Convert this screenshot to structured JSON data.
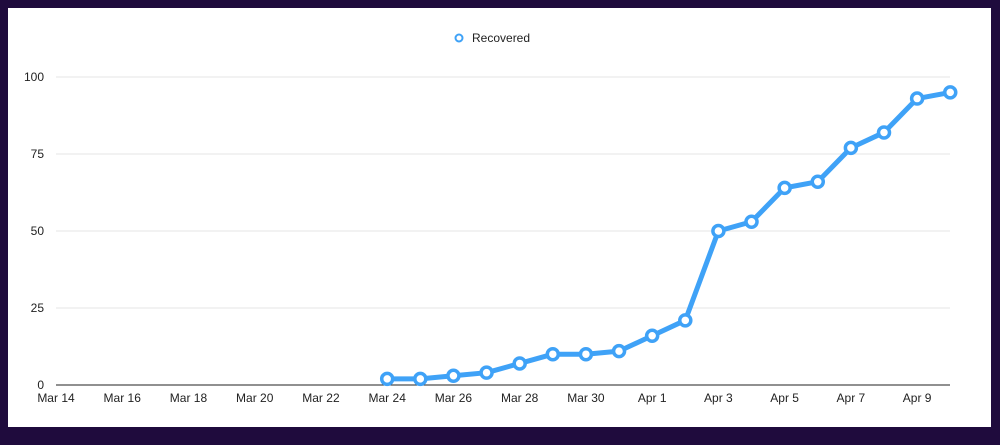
{
  "chart_data": {
    "type": "line",
    "title": "",
    "legend": {
      "entries": [
        "Recovered"
      ],
      "placement": "top-center"
    },
    "series": [
      {
        "name": "Recovered",
        "color": "#3fa2f7",
        "x": [
          "Mar 24",
          "Mar 25",
          "Mar 26",
          "Mar 27",
          "Mar 28",
          "Mar 29",
          "Mar 30",
          "Mar 31",
          "Apr 1",
          "Apr 2",
          "Apr 3",
          "Apr 4",
          "Apr 5",
          "Apr 6",
          "Apr 7",
          "Apr 8",
          "Apr 9",
          "Apr 10"
        ],
        "day_index": [
          10,
          11,
          12,
          13,
          14,
          15,
          16,
          17,
          18,
          19,
          20,
          21,
          22,
          23,
          24,
          25,
          26,
          27
        ],
        "values": [
          2,
          2,
          3,
          4,
          7,
          10,
          10,
          11,
          16,
          21,
          50,
          53,
          64,
          66,
          77,
          82,
          93,
          95
        ]
      }
    ],
    "x_ticks": [
      "Mar 14",
      "Mar 16",
      "Mar 18",
      "Mar 20",
      "Mar 22",
      "Mar 24",
      "Mar 26",
      "Mar 28",
      "Mar 30",
      "Apr 1",
      "Apr 3",
      "Apr 5",
      "Apr 7",
      "Apr 9"
    ],
    "x_tick_index": [
      0,
      2,
      4,
      6,
      8,
      10,
      12,
      14,
      16,
      18,
      20,
      22,
      24,
      26
    ],
    "y_ticks": [
      "0",
      "25",
      "50",
      "75",
      "100"
    ],
    "y_tick_values": [
      0,
      25,
      50,
      75,
      100
    ],
    "ylim": [
      0,
      100
    ],
    "xlim_days": [
      0,
      27
    ],
    "grid": true,
    "xlabel": "",
    "ylabel": ""
  }
}
